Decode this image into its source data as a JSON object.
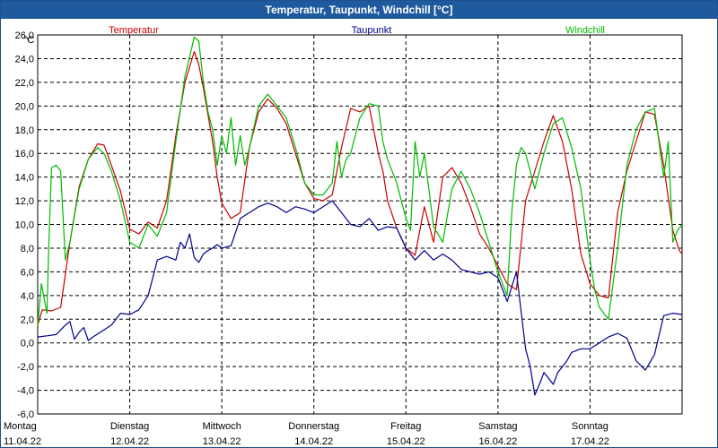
{
  "window": {
    "title": "Temperatur, Taupunkt, Windchill [°C]"
  },
  "chart_data": {
    "type": "line",
    "title": "Temperatur, Taupunkt, Windchill [°C]",
    "ylabel": "°C",
    "ylim": [
      -6,
      26
    ],
    "yticks": [
      "26,0",
      "24,0",
      "22,0",
      "20,0",
      "18,0",
      "16,0",
      "14,0",
      "12,0",
      "10,0",
      "8,0",
      "6,0",
      "4,0",
      "2,0",
      "0,0",
      "-2,0",
      "-4,0",
      "-6,0"
    ],
    "xlim": [
      0,
      7
    ],
    "xlabels": [
      {
        "day": "Montag",
        "date": "11.04.22"
      },
      {
        "day": "Dienstag",
        "date": "12.04.22"
      },
      {
        "day": "Mittwoch",
        "date": "13.04.22"
      },
      {
        "day": "Donnerstag",
        "date": "14.04.22"
      },
      {
        "day": "Freitag",
        "date": "15.04.22"
      },
      {
        "day": "Samstag",
        "date": "16.04.22"
      },
      {
        "day": "Sonntag",
        "date": "17.04.22"
      }
    ],
    "grid": true,
    "legend_position": "top",
    "series": [
      {
        "name": "Temperatur",
        "color": "#cc0000",
        "x": [
          0,
          0.05,
          0.15,
          0.25,
          0.35,
          0.45,
          0.55,
          0.65,
          0.72,
          0.8,
          0.9,
          1.0,
          1.1,
          1.2,
          1.3,
          1.4,
          1.5,
          1.6,
          1.7,
          1.75,
          1.8,
          1.9,
          1.95,
          2.0,
          2.1,
          2.2,
          2.3,
          2.4,
          2.5,
          2.6,
          2.7,
          2.8,
          2.9,
          3.0,
          3.1,
          3.2,
          3.3,
          3.4,
          3.5,
          3.6,
          3.7,
          3.75,
          3.8,
          3.9,
          4.0,
          4.1,
          4.2,
          4.3,
          4.4,
          4.5,
          4.6,
          4.7,
          4.8,
          4.9,
          5.0,
          5.1,
          5.2,
          5.3,
          5.4,
          5.5,
          5.6,
          5.7,
          5.8,
          5.9,
          6.0,
          6.1,
          6.2,
          6.3,
          6.4,
          6.5,
          6.6,
          6.7,
          6.8,
          6.9,
          6.97,
          7.0
        ],
        "values": [
          1.5,
          2.8,
          2.7,
          3.0,
          8.5,
          13.2,
          15.5,
          16.8,
          16.7,
          15.0,
          12.8,
          9.6,
          9.2,
          10.2,
          9.7,
          12.0,
          17.5,
          22.0,
          24.6,
          23.5,
          21.5,
          17.0,
          14.0,
          11.8,
          10.5,
          11.0,
          16.5,
          19.5,
          20.6,
          19.8,
          18.5,
          16.0,
          13.5,
          12.2,
          12.0,
          12.5,
          16.5,
          19.8,
          19.5,
          20.0,
          16.0,
          14.5,
          12.0,
          9.7,
          8.0,
          7.4,
          11.5,
          8.5,
          14.0,
          14.8,
          13.5,
          11.5,
          9.2,
          8.0,
          6.5,
          5.0,
          4.5,
          12.0,
          14.5,
          17.0,
          19.2,
          17.0,
          13.0,
          7.5,
          5.0,
          4.0,
          3.8,
          11.0,
          14.5,
          17.0,
          19.5,
          19.3,
          15.0,
          9.5,
          7.8,
          7.5
        ]
      },
      {
        "name": "Taupunkt",
        "color": "#00008b",
        "x": [
          0,
          0.1,
          0.2,
          0.3,
          0.35,
          0.4,
          0.45,
          0.5,
          0.55,
          0.6,
          0.7,
          0.8,
          0.9,
          1.0,
          1.1,
          1.2,
          1.3,
          1.4,
          1.5,
          1.55,
          1.6,
          1.65,
          1.7,
          1.75,
          1.8,
          1.85,
          1.9,
          1.95,
          2.0,
          2.1,
          2.2,
          2.3,
          2.4,
          2.5,
          2.6,
          2.7,
          2.8,
          2.9,
          3.0,
          3.1,
          3.2,
          3.3,
          3.4,
          3.5,
          3.6,
          3.7,
          3.8,
          3.9,
          4.0,
          4.1,
          4.2,
          4.3,
          4.4,
          4.5,
          4.6,
          4.7,
          4.8,
          4.9,
          5.0,
          5.1,
          5.2,
          5.3,
          5.35,
          5.4,
          5.45,
          5.5,
          5.55,
          5.6,
          5.65,
          5.7,
          5.75,
          5.8,
          5.9,
          6.0,
          6.1,
          6.2,
          6.3,
          6.4,
          6.5,
          6.6,
          6.7,
          6.8,
          6.9,
          7.0
        ],
        "values": [
          0.5,
          0.6,
          0.7,
          1.5,
          1.8,
          0.3,
          0.9,
          1.3,
          0.2,
          0.5,
          1.0,
          1.5,
          2.5,
          2.4,
          2.8,
          4.0,
          7.0,
          7.3,
          7.0,
          8.5,
          8.0,
          9.2,
          7.2,
          6.8,
          7.5,
          7.8,
          8.0,
          8.3,
          8.0,
          8.2,
          10.5,
          11.0,
          11.5,
          11.8,
          11.5,
          11.0,
          11.5,
          11.3,
          11.0,
          11.5,
          12.0,
          11.0,
          10.0,
          9.8,
          10.5,
          9.5,
          9.8,
          9.7,
          8.0,
          7.0,
          7.8,
          7.0,
          7.5,
          7.0,
          6.2,
          6.0,
          5.8,
          6.0,
          5.5,
          3.5,
          6.0,
          -0.5,
          -2.0,
          -4.4,
          -3.5,
          -2.5,
          -3.0,
          -3.5,
          -2.5,
          -2.0,
          -1.5,
          -0.8,
          -0.5,
          -0.5,
          0.0,
          0.5,
          0.8,
          0.4,
          -1.5,
          -2.3,
          -1.0,
          2.3,
          2.5,
          2.4
        ]
      },
      {
        "name": "Windchill",
        "color": "#00bb00",
        "x": [
          0,
          0.04,
          0.1,
          0.12,
          0.15,
          0.2,
          0.25,
          0.3,
          0.35,
          0.45,
          0.55,
          0.65,
          0.72,
          0.8,
          0.9,
          1.0,
          1.1,
          1.2,
          1.3,
          1.4,
          1.5,
          1.6,
          1.7,
          1.75,
          1.8,
          1.85,
          1.9,
          1.95,
          2.0,
          2.05,
          2.1,
          2.15,
          2.2,
          2.25,
          2.3,
          2.4,
          2.5,
          2.6,
          2.7,
          2.8,
          2.9,
          3.0,
          3.1,
          3.2,
          3.25,
          3.3,
          3.35,
          3.4,
          3.5,
          3.6,
          3.7,
          3.75,
          3.8,
          3.85,
          3.9,
          4.0,
          4.05,
          4.1,
          4.15,
          4.2,
          4.3,
          4.4,
          4.5,
          4.6,
          4.7,
          4.8,
          4.9,
          5.0,
          5.1,
          5.15,
          5.2,
          5.25,
          5.3,
          5.4,
          5.5,
          5.6,
          5.7,
          5.8,
          5.9,
          6.0,
          6.05,
          6.1,
          6.2,
          6.3,
          6.4,
          6.5,
          6.6,
          6.7,
          6.8,
          6.85,
          6.9,
          6.95,
          7.0
        ],
        "values": [
          1.5,
          5.0,
          2.5,
          8.0,
          14.8,
          15.0,
          14.5,
          7.0,
          8.5,
          13.0,
          15.5,
          16.5,
          16.0,
          14.5,
          12.0,
          8.5,
          8.0,
          10.0,
          9.0,
          11.0,
          17.0,
          22.5,
          25.8,
          25.5,
          22.0,
          19.5,
          18.0,
          15.0,
          17.5,
          16.0,
          19.0,
          15.0,
          17.5,
          15.0,
          16.5,
          20.0,
          21.0,
          20.0,
          19.0,
          16.5,
          13.5,
          12.5,
          12.5,
          13.5,
          17.0,
          14.0,
          15.5,
          16.0,
          19.0,
          20.2,
          20.0,
          17.0,
          15.5,
          14.5,
          13.5,
          10.5,
          9.5,
          17.0,
          14.0,
          16.0,
          9.8,
          8.5,
          13.0,
          14.5,
          13.0,
          11.0,
          8.5,
          6.0,
          4.0,
          11.0,
          15.0,
          16.5,
          16.0,
          13.0,
          16.0,
          18.5,
          19.0,
          16.5,
          13.0,
          7.0,
          4.5,
          3.0,
          2.0,
          8.0,
          15.0,
          18.0,
          19.5,
          19.8,
          14.0,
          17.0,
          8.5,
          9.5,
          10.0
        ]
      }
    ]
  }
}
